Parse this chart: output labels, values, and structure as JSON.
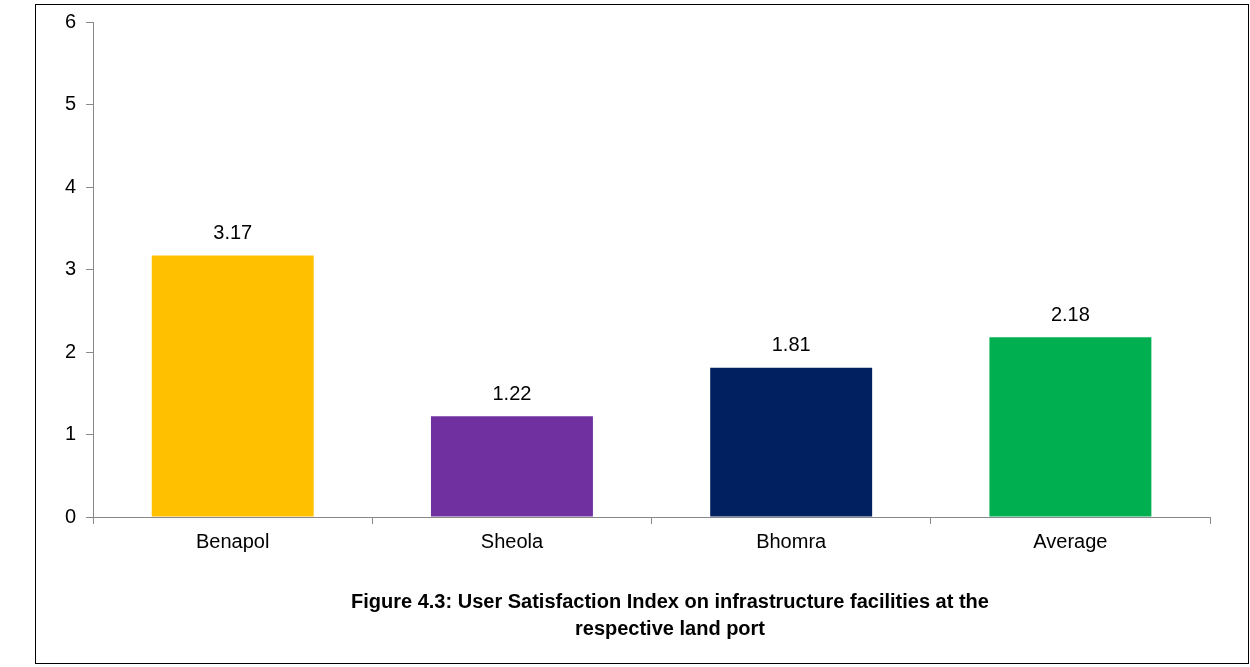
{
  "chart_data": {
    "type": "bar",
    "title": "Figure 4.3: User Satisfaction Index on infrastructure facilities at the respective land port",
    "categories": [
      "Benapol",
      "Sheola",
      "Bhomra",
      "Average"
    ],
    "values": [
      3.17,
      1.22,
      1.81,
      2.18
    ],
    "colors": [
      "#ffc000",
      "#7030a0",
      "#002060",
      "#00b050"
    ],
    "ylim": [
      0,
      6
    ],
    "yticks": [
      0,
      1,
      2,
      3,
      4,
      5,
      6
    ],
    "grid": false,
    "legend": false,
    "data_labels": true
  }
}
